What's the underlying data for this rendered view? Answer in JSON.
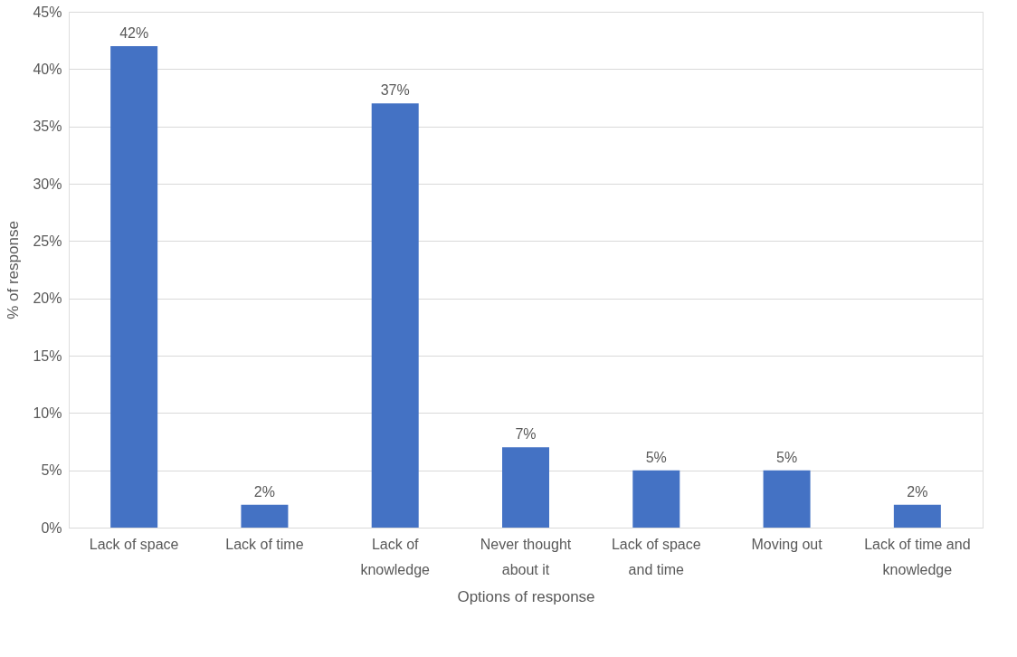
{
  "chart_data": {
    "type": "bar",
    "xlabel": "Options of response",
    "ylabel": "% of response",
    "categories": [
      "Lack of space",
      "Lack of time",
      "Lack of knowledge",
      "Never thought about it",
      "Lack of space and time",
      "Moving out",
      "Lack of time and knowledge"
    ],
    "values": [
      42,
      2,
      37,
      7,
      5,
      5,
      2
    ],
    "value_labels": [
      "42%",
      "2%",
      "37%",
      "7%",
      "5%",
      "5%",
      "2%"
    ],
    "color": "#4472c4",
    "ylim": [
      0,
      45
    ],
    "yticks": [
      {
        "value": 0,
        "label": "0%"
      },
      {
        "value": 5,
        "label": "5%"
      },
      {
        "value": 10,
        "label": "10%"
      },
      {
        "value": 15,
        "label": "15%"
      },
      {
        "value": 20,
        "label": "20%"
      },
      {
        "value": 25,
        "label": "25%"
      },
      {
        "value": 30,
        "label": "30%"
      },
      {
        "value": 35,
        "label": "35%"
      },
      {
        "value": 40,
        "label": "40%"
      },
      {
        "value": 45,
        "label": "45%"
      }
    ],
    "grid": "y"
  }
}
